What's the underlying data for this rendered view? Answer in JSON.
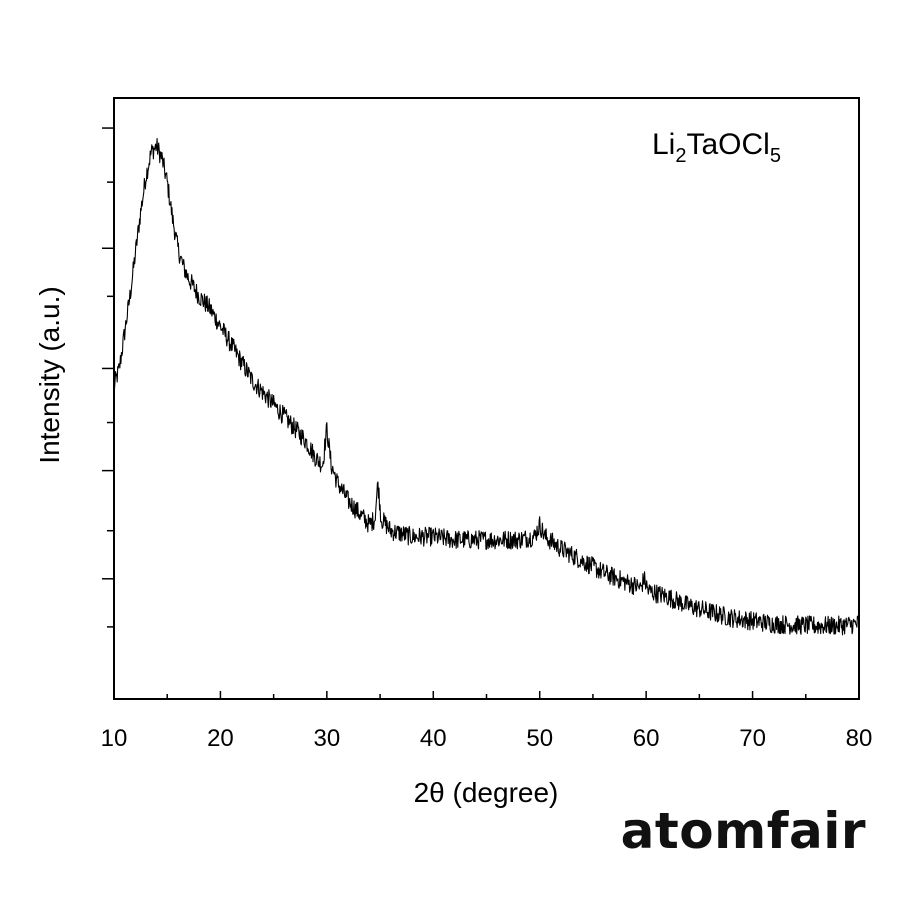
{
  "chart_data": {
    "type": "line",
    "title": "",
    "xlabel": "2θ (degree)",
    "ylabel": "Intensity (a.u.)",
    "xlim": [
      10,
      80
    ],
    "ylim": [
      0,
      100
    ],
    "x_ticks": [
      "10",
      "20",
      "30",
      "40",
      "50",
      "60",
      "70",
      "80"
    ],
    "y_tick_labels_visible": false,
    "grid": false,
    "legend": "none",
    "annotation": {
      "main": "Li",
      "sub1": "2",
      "mid": "TaOCl",
      "sub2": "5"
    },
    "series": [
      {
        "color": "#000000",
        "points": [
          [
            10.0,
            52
          ],
          [
            10.5,
            55
          ],
          [
            11.0,
            61
          ],
          [
            11.5,
            67
          ],
          [
            12.0,
            74
          ],
          [
            12.5,
            81
          ],
          [
            13.0,
            87
          ],
          [
            13.5,
            91
          ],
          [
            14.0,
            92
          ],
          [
            14.5,
            90
          ],
          [
            15.0,
            86
          ],
          [
            15.5,
            80
          ],
          [
            16.0,
            75
          ],
          [
            16.5,
            72
          ],
          [
            17.0,
            70
          ],
          [
            18.0,
            67
          ],
          [
            19.0,
            65
          ],
          [
            20.0,
            62
          ],
          [
            21.0,
            59
          ],
          [
            22.0,
            56
          ],
          [
            23.0,
            53
          ],
          [
            24.0,
            51
          ],
          [
            25.0,
            49
          ],
          [
            26.0,
            47
          ],
          [
            27.0,
            45
          ],
          [
            28.0,
            43
          ],
          [
            29.0,
            40
          ],
          [
            29.6,
            39
          ],
          [
            30.0,
            45
          ],
          [
            30.4,
            39
          ],
          [
            31.0,
            36
          ],
          [
            32.0,
            33
          ],
          [
            33.0,
            31
          ],
          [
            34.0,
            29
          ],
          [
            34.5,
            30
          ],
          [
            34.8,
            36
          ],
          [
            35.1,
            30
          ],
          [
            36.0,
            28
          ],
          [
            38.0,
            27
          ],
          [
            40.0,
            27
          ],
          [
            42.0,
            26.5
          ],
          [
            44.0,
            26.5
          ],
          [
            46.0,
            26.5
          ],
          [
            48.0,
            26.5
          ],
          [
            49.5,
            27
          ],
          [
            50.0,
            29
          ],
          [
            50.5,
            27
          ],
          [
            52.0,
            25
          ],
          [
            54.0,
            23
          ],
          [
            56.0,
            21
          ],
          [
            58.0,
            19.5
          ],
          [
            59.5,
            18.5
          ],
          [
            59.8,
            20
          ],
          [
            60.2,
            18
          ],
          [
            62.0,
            17
          ],
          [
            64.0,
            15.5
          ],
          [
            66.0,
            14.5
          ],
          [
            68.0,
            13.5
          ],
          [
            70.0,
            13
          ],
          [
            72.0,
            12.5
          ],
          [
            74.0,
            12.3
          ],
          [
            76.0,
            12.2
          ],
          [
            78.0,
            12.2
          ],
          [
            80.0,
            12.5
          ]
        ]
      }
    ]
  },
  "brand": {
    "logo_text": "atomfair"
  }
}
